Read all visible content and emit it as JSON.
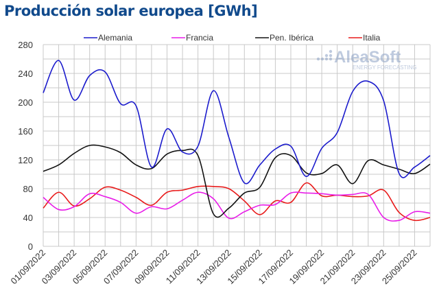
{
  "chart_data": {
    "type": "line",
    "title": "Producción solar europea [GWh]",
    "xlabel": "",
    "ylabel": "",
    "ylim": [
      0,
      280
    ],
    "yticks": [
      0,
      40,
      80,
      120,
      160,
      200,
      240,
      280
    ],
    "grid": true,
    "legend_position": "top",
    "x": [
      "01/09/2022",
      "02/09/2022",
      "03/09/2022",
      "04/09/2022",
      "05/09/2022",
      "06/09/2022",
      "07/09/2022",
      "08/09/2022",
      "09/09/2022",
      "10/09/2022",
      "11/09/2022",
      "12/09/2022",
      "13/09/2022",
      "14/09/2022",
      "15/09/2022",
      "16/09/2022",
      "17/09/2022",
      "18/09/2022",
      "19/09/2022",
      "20/09/2022",
      "21/09/2022",
      "22/09/2022",
      "23/09/2022",
      "24/09/2022",
      "25/09/2022",
      "26/09/2022"
    ],
    "xtick_labels": [
      "01/09/2022",
      "03/09/2022",
      "05/09/2022",
      "07/09/2022",
      "09/09/2022",
      "11/09/2022",
      "13/09/2022",
      "15/09/2022",
      "17/09/2022",
      "19/09/2022",
      "21/09/2022",
      "23/09/2022",
      "25/09/2022"
    ],
    "series": [
      {
        "name": "Alemania",
        "color": "#1a1acc",
        "values": [
          213,
          258,
          203,
          237,
          242,
          198,
          195,
          110,
          163,
          131,
          139,
          216,
          151,
          88,
          113,
          135,
          139,
          97,
          136,
          158,
          215,
          229,
          202,
          101,
          110,
          126
        ]
      },
      {
        "name": "Francia",
        "color": "#e81ce8",
        "values": [
          68,
          51,
          55,
          73,
          69,
          61,
          46,
          55,
          52,
          64,
          75,
          66,
          39,
          48,
          57,
          58,
          74,
          74,
          73,
          71,
          72,
          72,
          40,
          36,
          48,
          46
        ]
      },
      {
        "name": "Pen. Ibérica",
        "color": "#111111",
        "values": [
          104,
          113,
          129,
          140,
          138,
          130,
          113,
          108,
          128,
          133,
          126,
          45,
          53,
          74,
          82,
          123,
          126,
          102,
          101,
          113,
          87,
          119,
          113,
          107,
          101,
          114
        ]
      },
      {
        "name": "Italia",
        "color": "#e81a1a",
        "values": [
          53,
          75,
          56,
          66,
          82,
          78,
          68,
          57,
          75,
          78,
          83,
          83,
          80,
          63,
          44,
          63,
          61,
          88,
          70,
          71,
          69,
          70,
          78,
          47,
          36,
          40
        ]
      }
    ]
  },
  "watermark": {
    "brand": "AleaSoft",
    "tagline": "ENERGY FORECASTING"
  }
}
